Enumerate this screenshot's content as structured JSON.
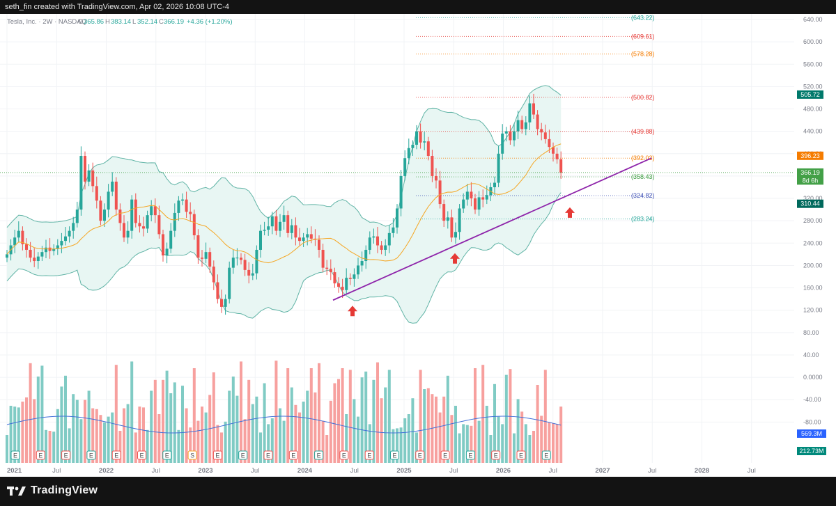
{
  "header": {
    "attribution": "seth_fin created with TradingView.com, Apr 02, 2026 10:08 UTC-4"
  },
  "legend": {
    "symbol": "Tesla, Inc. · 2W · NASDAQ",
    "o_label": "O",
    "open": "365.86",
    "h_label": "H",
    "high": "383.14",
    "l_label": "L",
    "low": "352.14",
    "c_label": "C",
    "close": "366.19",
    "change": "+4.36 (+1.20%)"
  },
  "colors": {
    "up": "#26a69a",
    "down": "#ef5350",
    "ma": "#f5a623",
    "band_fill": "#e8f6f3",
    "band_line": "#5fb3a5",
    "trendline": "#8e24aa",
    "arrow": "#e53935",
    "vol_ma": "#3f6fd8"
  },
  "footer": {
    "brand": "TradingView"
  },
  "chart_data": {
    "type": "candlestick",
    "x_ticks": [
      "2021",
      "Jul",
      "2022",
      "Jul",
      "2023",
      "Jul",
      "2024",
      "Jul",
      "2025",
      "Jul",
      "2026",
      "Jul",
      "2027",
      "Jul",
      "2028",
      "Jul"
    ],
    "price_ticks": [
      "640.00",
      "600.00",
      "560.00",
      "520.00",
      "480.00",
      "440.00",
      "400.00",
      "360.00",
      "320.00",
      "280.00",
      "240.00",
      "200.00",
      "160.00",
      "120.00",
      "80.00",
      "40.00",
      "0.0000",
      "-40.00",
      "-80.00"
    ],
    "ylim": [
      -80,
      640
    ],
    "price_tags": [
      {
        "text": "505.72",
        "value": 505.72,
        "color": "#00796b"
      },
      {
        "text": "396.23",
        "value": 396.23,
        "color": "#f57c00"
      },
      {
        "text": "366.19",
        "value": 366.19,
        "color": "#43a047"
      },
      {
        "text": "8d 6h",
        "value": 352,
        "color": "#43a047"
      },
      {
        "text": "310.44",
        "value": 310.44,
        "color": "#00695c"
      }
    ],
    "volume_tags": [
      {
        "text": "569.3M",
        "color": "#2962ff"
      },
      {
        "text": "212.73M",
        "color": "#00897b"
      }
    ],
    "levels": [
      {
        "label": "(643.22)",
        "value": 643.22,
        "color": "#26a69a"
      },
      {
        "label": "(609.61)",
        "value": 609.61,
        "color": "#e53935"
      },
      {
        "label": "(578.28)",
        "value": 578.28,
        "color": "#f57c00"
      },
      {
        "label": "(500.82)",
        "value": 500.82,
        "color": "#e53935"
      },
      {
        "label": "(439.88)",
        "value": 439.88,
        "color": "#e53935"
      },
      {
        "label": "(392.03)",
        "value": 392.03,
        "color": "#f57c00"
      },
      {
        "label": "(358.43)",
        "value": 358.43,
        "color": "#43a047"
      },
      {
        "label": "(324.82)",
        "value": 324.82,
        "color": "#3f51b5"
      },
      {
        "label": "(283.24)",
        "value": 283.24,
        "color": "#26a69a"
      }
    ],
    "trendline": {
      "from": [
        "2024-03",
        138
      ],
      "to": [
        "2027-01",
        392
      ]
    },
    "support_arrows": [
      [
        "2024-05",
        118
      ],
      [
        "2025-04",
        212
      ],
      [
        "2026-05",
        294
      ]
    ],
    "earnings_markers": [
      "E",
      "E",
      "E",
      "E",
      "E",
      "E",
      "E",
      "S",
      "E",
      "E",
      "E",
      "E",
      "E",
      "E",
      "E",
      "E",
      "E",
      "E",
      "E",
      "E",
      "E",
      "E"
    ],
    "closes": [
      220,
      236,
      250,
      262,
      238,
      228,
      214,
      208,
      216,
      224,
      232,
      226,
      230,
      236,
      244,
      252,
      262,
      276,
      300,
      396,
      350,
      370,
      342,
      316,
      280,
      300,
      332,
      350,
      300,
      276,
      250,
      262,
      318,
      276,
      270,
      266,
      290,
      306,
      290,
      256,
      218,
      230,
      262,
      294,
      316,
      318,
      296,
      292,
      254,
      214,
      212,
      224,
      198,
      170,
      140,
      126,
      140,
      196,
      214,
      214,
      210,
      192,
      182,
      186,
      228,
      262,
      264,
      270,
      288,
      262,
      278,
      290,
      258,
      272,
      250,
      244,
      250,
      256,
      248,
      246,
      228,
      196,
      194,
      188,
      168,
      162,
      156,
      178,
      176,
      184,
      200,
      208,
      228,
      250,
      252,
      236,
      228,
      236,
      258,
      268,
      302,
      360,
      392,
      410,
      416,
      440,
      420,
      422,
      396,
      360,
      352,
      310,
      280,
      286,
      250,
      260,
      302,
      318,
      332,
      320,
      300,
      322,
      318,
      326,
      340,
      348,
      400,
      436,
      440,
      424,
      440,
      460,
      444,
      456,
      490,
      470,
      444,
      438,
      426,
      412,
      400,
      390,
      366
    ]
  }
}
